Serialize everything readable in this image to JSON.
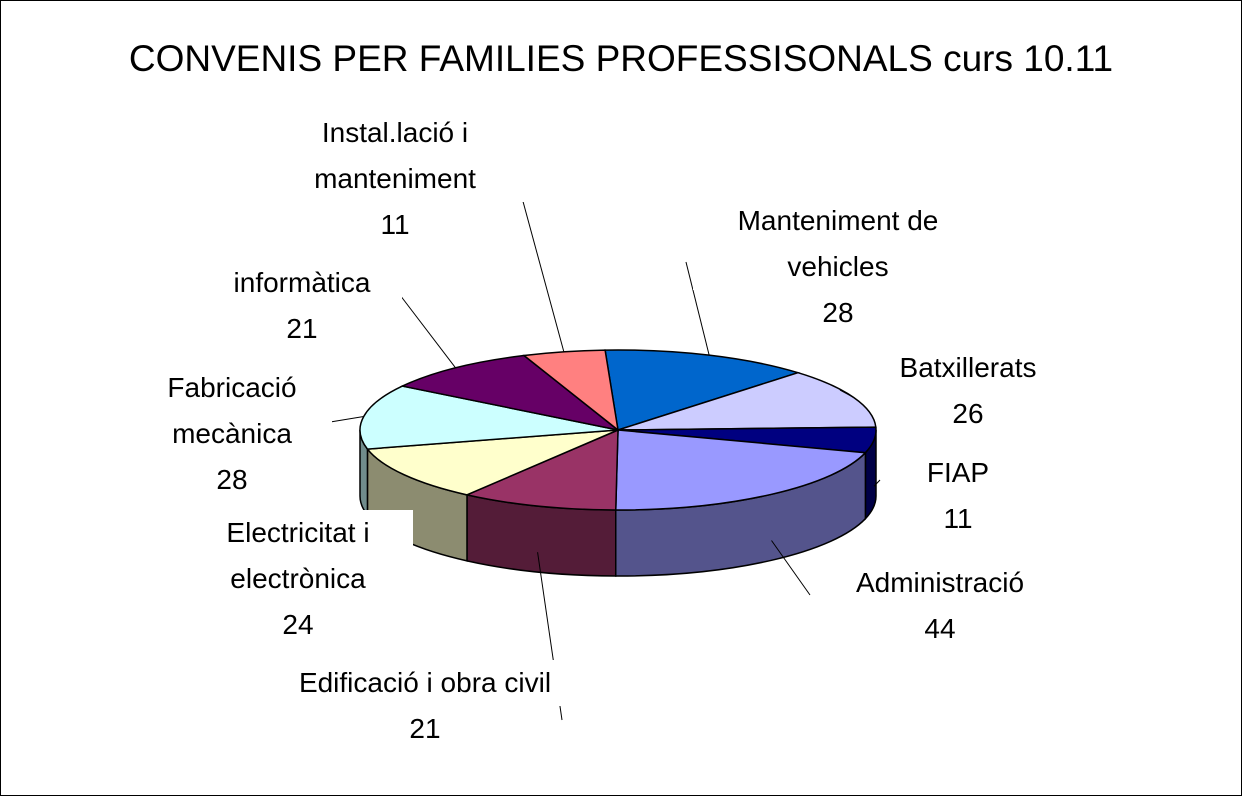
{
  "chart_data": {
    "type": "pie3d",
    "title": "CONVENIS PER FAMILIES PROFESSISONALS curs 10.11",
    "categories": [
      "Manteniment de vehicles",
      "Batxillerats",
      "FIAP",
      "Administració",
      "Edificació i obra civil",
      "Electricitat i electrònica",
      "Fabricació mecànica",
      "informàtica",
      "Instal.lació i manteniment"
    ],
    "values": [
      28,
      26,
      11,
      44,
      21,
      24,
      28,
      21,
      11
    ],
    "colors": [
      "#0066cc",
      "#ccccff",
      "#000080",
      "#9999ff",
      "#993366",
      "#ffffcc",
      "#ccffff",
      "#660066",
      "#ff8080"
    ]
  }
}
